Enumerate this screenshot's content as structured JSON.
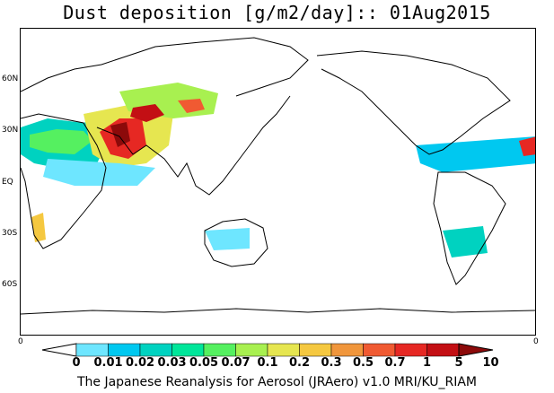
{
  "title": "Dust deposition [g/m2/day]:: 01Aug2015",
  "map": {
    "latitude_labels": [
      "60N",
      "30N",
      "EQ",
      "30S",
      "60S"
    ],
    "latitude_values": [
      60,
      30,
      0,
      -30,
      -60
    ],
    "edge_labels": {
      "left": "0",
      "right": "0"
    },
    "land_color": "#ffffff",
    "coastline_color": "#000000"
  },
  "legend": {
    "tick_labels": [
      "0",
      "0.01",
      "0.02",
      "0.03",
      "0.05",
      "0.07",
      "0.1",
      "0.2",
      "0.3",
      "0.5",
      "0.7",
      "1",
      "5",
      "10"
    ],
    "colors": [
      "#ffffff",
      "#6ee6ff",
      "#00c8f0",
      "#00d2c0",
      "#00e69a",
      "#55f060",
      "#a8f050",
      "#e6e650",
      "#f5c840",
      "#f0963c",
      "#f05a32",
      "#e62823",
      "#c30f14",
      "#8c0a0a"
    ]
  },
  "footer": "The Japanese Reanalysis for Aerosol (JRAero) v1.0 MRI/KU_RIAM"
}
